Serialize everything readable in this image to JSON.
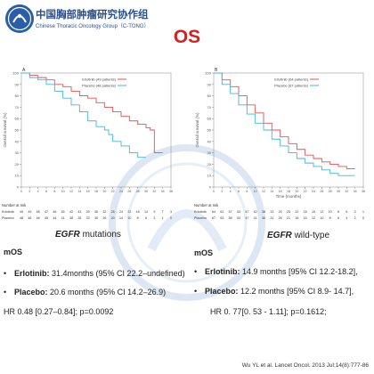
{
  "header": {
    "org_cn": "中国胸部肿瘤研究协作组",
    "org_en": "Chinese Thoracic Oncology Group（C-TONG）",
    "title": "OS",
    "citation": "Wu YL et al. Lancet Oncol. 2013 Jul;14(8):777-86",
    "colors": {
      "logo_blue": "#2a5ea8",
      "title_red": "#d42020"
    }
  },
  "panels": [
    {
      "id": "A",
      "caption_gene": "EGFR",
      "caption_rest": "mutations",
      "mos_heading": "mOS",
      "bullets": [
        {
          "drug": "Erlotinib:",
          "text": "31.4months (95% CI 22.2–undefined)"
        },
        {
          "drug": "Placebo:",
          "text": "20.6 months (95% CI 14.2–26.9)"
        }
      ],
      "hr_text": "HR 0.48 [0.27–0.84]; p=0.0092"
    },
    {
      "id": "B",
      "caption_gene": "EGFR",
      "caption_rest": "wild-type",
      "mos_heading": "mOS",
      "bullets": [
        {
          "drug": "Erlotinib:",
          "text": "14.9 months [95% CI 12.2-18.2],"
        },
        {
          "drug": "Placebo:",
          "text": "12.2 months [95% CI 8.9- 14.7],"
        }
      ],
      "hr_text": "HR 0. 77[0. 53 - 1.11]; p=0.1612;"
    }
  ],
  "chart_data": [
    {
      "type": "line",
      "panel_label": "A",
      "ylabel": "Overall survival (%)",
      "xlabel": "",
      "ylim": [
        0,
        100
      ],
      "xlim": [
        0,
        36
      ],
      "yticks": [
        0,
        10,
        20,
        30,
        40,
        50,
        60,
        70,
        80,
        90,
        100
      ],
      "xticks": [
        0,
        2,
        4,
        6,
        8,
        10,
        12,
        14,
        16,
        18,
        20,
        22,
        24,
        26,
        28,
        30,
        32,
        34,
        36
      ],
      "legend_position": "top-right",
      "series": [
        {
          "name": "Erlotinib (49 patients)",
          "color": "#e05252",
          "x": [
            0,
            2,
            4,
            6,
            8,
            10,
            12,
            14,
            16,
            18,
            20,
            22,
            24,
            26,
            28,
            30,
            31,
            32,
            34
          ],
          "y": [
            100,
            98,
            96,
            94,
            90,
            88,
            84,
            80,
            78,
            74,
            70,
            66,
            62,
            58,
            55,
            52,
            50,
            30,
            30
          ]
        },
        {
          "name": "Placebo (48 patients)",
          "color": "#3eb8d8",
          "x": [
            0,
            2,
            4,
            6,
            8,
            10,
            12,
            14,
            16,
            18,
            20,
            21,
            22,
            24,
            26,
            28,
            30
          ],
          "y": [
            100,
            96,
            94,
            90,
            84,
            78,
            72,
            66,
            58,
            53,
            50,
            46,
            40,
            36,
            30,
            26,
            26
          ]
        }
      ],
      "risk_table": {
        "heading": "Number at risk",
        "rows": [
          {
            "name": "Erlotinib",
            "values": [
              "49",
              "49",
              "48",
              "47",
              "46",
              "45",
              "42",
              "41",
              "39",
              "36",
              "32",
              "28",
              "24",
              "22",
              "18",
              "14",
              "9",
              "7",
              "3"
            ]
          },
          {
            "name": "Placebo",
            "values": [
              "48",
              "46",
              "46",
              "45",
              "44",
              "41",
              "38",
              "35",
              "33",
              "30",
              "26",
              "20",
              "14",
              "10",
              "8",
              "6",
              "3",
              "1",
              "0"
            ]
          }
        ]
      }
    },
    {
      "type": "line",
      "panel_label": "B",
      "ylabel": "Overall survival (%)",
      "xlabel": "Time (months)",
      "ylim": [
        0,
        100
      ],
      "xlim": [
        0,
        36
      ],
      "yticks": [
        0,
        10,
        20,
        30,
        40,
        50,
        60,
        70,
        80,
        90,
        100
      ],
      "xticks": [
        0,
        2,
        4,
        6,
        8,
        10,
        12,
        14,
        16,
        18,
        20,
        22,
        24,
        26,
        28,
        30,
        32,
        34,
        36
      ],
      "legend_position": "top-right",
      "series": [
        {
          "name": "Erlotinib (64 patients)",
          "color": "#e05252",
          "x": [
            0,
            2,
            4,
            6,
            8,
            10,
            12,
            14,
            16,
            18,
            20,
            22,
            24,
            26,
            28,
            30,
            32,
            34
          ],
          "y": [
            100,
            94,
            88,
            80,
            72,
            65,
            56,
            50,
            44,
            38,
            33,
            28,
            25,
            22,
            20,
            18,
            16,
            16
          ]
        },
        {
          "name": "Placebo (67 patients)",
          "color": "#3eb8d8",
          "x": [
            0,
            2,
            4,
            6,
            8,
            10,
            12,
            14,
            16,
            18,
            20,
            22,
            24,
            26,
            28,
            30,
            32,
            34
          ],
          "y": [
            100,
            90,
            82,
            72,
            64,
            56,
            50,
            42,
            36,
            30,
            25,
            21,
            18,
            15,
            12,
            10,
            10,
            10
          ]
        }
      ],
      "risk_table": {
        "heading": "Number at risk",
        "rows": [
          {
            "name": "Erlotinib",
            "values": [
              "64",
              "61",
              "57",
              "53",
              "47",
              "42",
              "38",
              "33",
              "29",
              "25",
              "22",
              "18",
              "15",
              "12",
              "10",
              "8",
              "6",
              "3",
              "1"
            ]
          },
          {
            "name": "Placebo",
            "values": [
              "67",
              "63",
              "58",
              "53",
              "47",
              "41",
              "36",
              "31",
              "26",
              "21",
              "18",
              "15",
              "12",
              "10",
              "8",
              "6",
              "4",
              "2",
              "0"
            ]
          }
        ]
      }
    }
  ]
}
